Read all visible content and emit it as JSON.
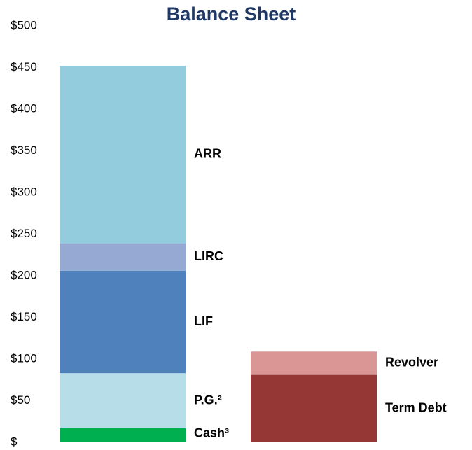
{
  "chart_data": {
    "type": "stacked_bar",
    "title": "Balance Sheet",
    "categories": [
      null,
      null
    ],
    "series": [
      {
        "name": "Cash³",
        "color": "#00b050",
        "values": [
          17,
          null
        ]
      },
      {
        "name": "P.G.²",
        "color": "#b7dde8",
        "values": [
          66,
          null
        ]
      },
      {
        "name": "LIF",
        "color": "#4f81bd",
        "values": [
          123,
          null
        ]
      },
      {
        "name": "LIRC",
        "color": "#95a9d2",
        "values": [
          33,
          null
        ]
      },
      {
        "name": "ARR",
        "color": "#93cddd",
        "values": [
          213,
          null
        ]
      },
      {
        "name": "Term Debt",
        "color": "#953735",
        "values": [
          null,
          81
        ]
      },
      {
        "name": "Revolver",
        "color": "#d99694",
        "values": [
          null,
          28
        ]
      }
    ],
    "ylim": [
      0,
      500
    ],
    "yticks": [
      {
        "value": 0,
        "label": "$"
      },
      {
        "value": 50,
        "label": "$50"
      },
      {
        "value": 100,
        "label": "$100"
      },
      {
        "value": 150,
        "label": "$150"
      },
      {
        "value": 200,
        "label": "$200"
      },
      {
        "value": 250,
        "label": "$250"
      },
      {
        "value": 300,
        "label": "$300"
      },
      {
        "value": 350,
        "label": "$350"
      },
      {
        "value": 400,
        "label": "$400"
      },
      {
        "value": 450,
        "label": "$450"
      },
      {
        "value": 500,
        "label": "$500"
      }
    ],
    "grid": false
  }
}
